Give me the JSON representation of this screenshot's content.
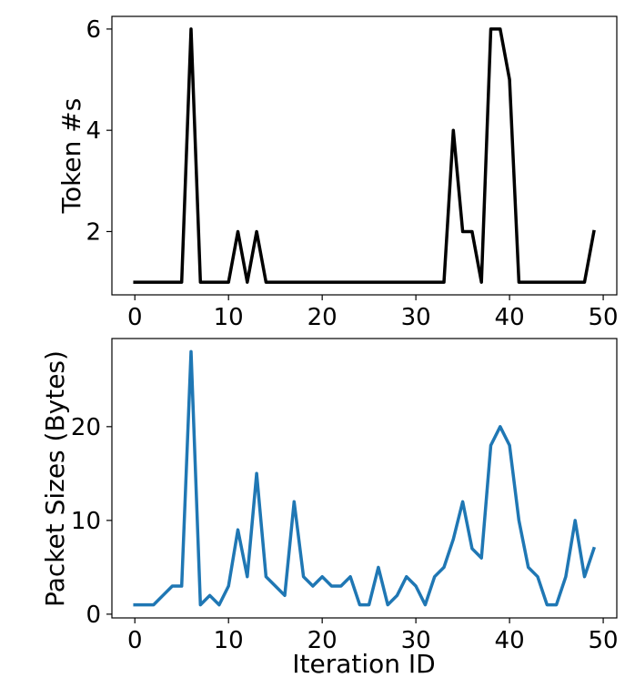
{
  "chart_data": [
    {
      "type": "line",
      "title": "",
      "xlabel": "",
      "ylabel": "Token #s",
      "xlim": [
        -2.45,
        51.45
      ],
      "ylim": [
        0.75,
        6.25
      ],
      "xticks": [
        0,
        10,
        20,
        30,
        40,
        50
      ],
      "yticks": [
        2,
        4,
        6
      ],
      "grid": false,
      "color": "#000000",
      "x": [
        0,
        1,
        2,
        3,
        4,
        5,
        6,
        7,
        8,
        9,
        10,
        11,
        12,
        13,
        14,
        15,
        16,
        17,
        18,
        19,
        20,
        21,
        22,
        23,
        24,
        25,
        26,
        27,
        28,
        29,
        30,
        31,
        32,
        33,
        34,
        35,
        36,
        37,
        38,
        39,
        40,
        41,
        42,
        43,
        44,
        45,
        46,
        47,
        48,
        49
      ],
      "values": [
        1,
        1,
        1,
        1,
        1,
        1,
        6,
        1,
        1,
        1,
        1,
        2,
        1,
        2,
        1,
        1,
        1,
        1,
        1,
        1,
        1,
        1,
        1,
        1,
        1,
        1,
        1,
        1,
        1,
        1,
        1,
        1,
        1,
        1,
        4,
        2,
        2,
        1,
        6,
        6,
        5,
        1,
        1,
        1,
        1,
        1,
        1,
        1,
        1,
        2
      ]
    },
    {
      "type": "line",
      "title": "",
      "xlabel": "Iteration ID",
      "ylabel": "Packet Sizes (Bytes)",
      "xlim": [
        -2.45,
        51.45
      ],
      "ylim": [
        -0.4,
        29.4
      ],
      "xticks": [
        0,
        10,
        20,
        30,
        40,
        50
      ],
      "yticks": [
        0,
        10,
        20
      ],
      "grid": false,
      "color": "#1f77b4",
      "x": [
        0,
        1,
        2,
        3,
        4,
        5,
        6,
        7,
        8,
        9,
        10,
        11,
        12,
        13,
        14,
        15,
        16,
        17,
        18,
        19,
        20,
        21,
        22,
        23,
        24,
        25,
        26,
        27,
        28,
        29,
        30,
        31,
        32,
        33,
        34,
        35,
        36,
        37,
        38,
        39,
        40,
        41,
        42,
        43,
        44,
        45,
        46,
        47,
        48,
        49
      ],
      "values": [
        1,
        1,
        1,
        2,
        3,
        3,
        28,
        1,
        2,
        1,
        3,
        9,
        4,
        15,
        4,
        3,
        2,
        12,
        4,
        3,
        4,
        3,
        3,
        4,
        1,
        1,
        5,
        1,
        2,
        4,
        3,
        1,
        4,
        5,
        8,
        12,
        7,
        6,
        18,
        20,
        18,
        10,
        5,
        4,
        1,
        1,
        4,
        10,
        4,
        7
      ]
    }
  ]
}
